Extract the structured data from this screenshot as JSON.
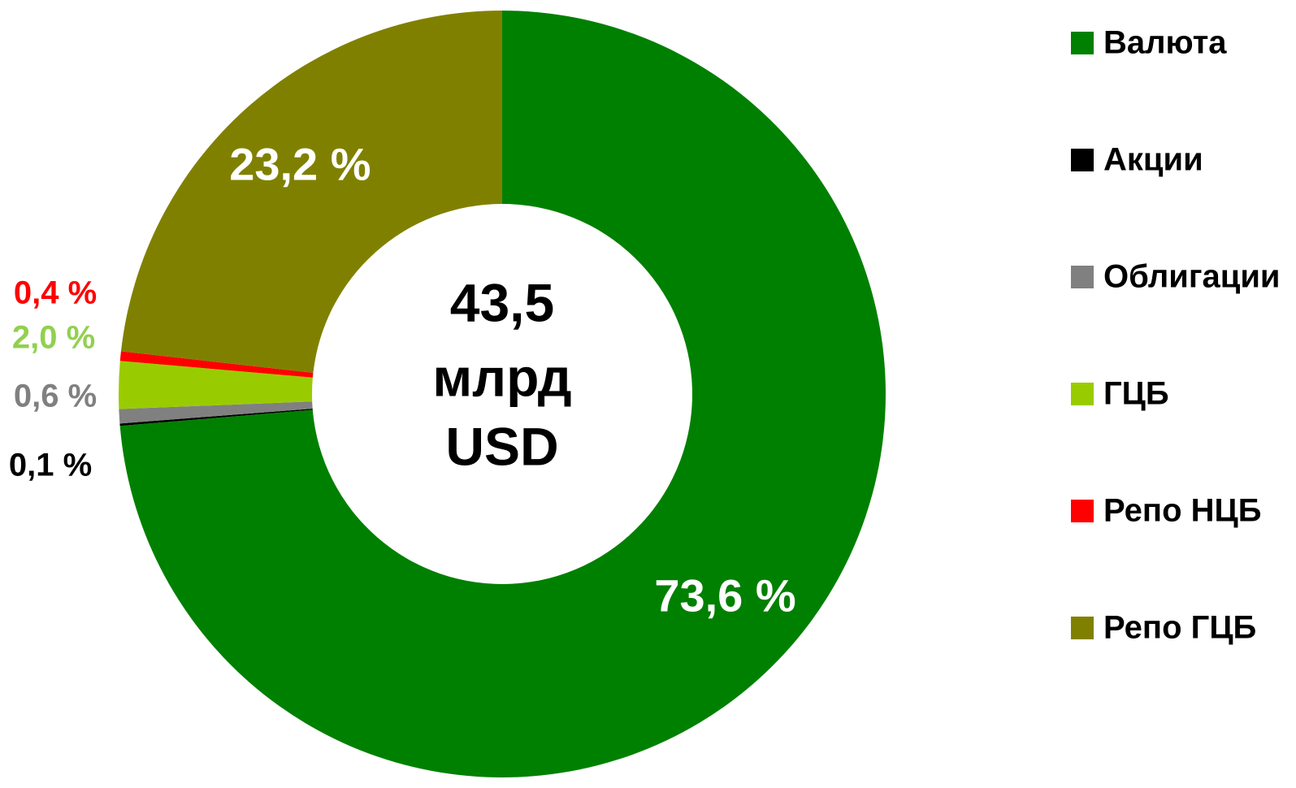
{
  "chart_data": {
    "type": "donut",
    "categories": [
      "Валюта",
      "Акции",
      "Облигации",
      "ГЦБ",
      "Репо НЦБ",
      "Репо ГЦБ"
    ],
    "values": [
      73.6,
      0.1,
      0.6,
      2.0,
      0.4,
      23.2
    ],
    "value_labels": [
      "73,6 %",
      "0,1 %",
      "0,6 %",
      "2,0 %",
      "0,4 %",
      "23,2 %"
    ],
    "colors": [
      "#008000",
      "#000000",
      "#808080",
      "#99cc00",
      "#ff0000",
      "#808000"
    ],
    "label_colors": [
      "#ffffff",
      "#000000",
      "#808080",
      "#92d050",
      "#ff0000",
      "#ffffff"
    ],
    "center_text": [
      "43,5",
      "млрд",
      "USD"
    ],
    "legend": "right"
  }
}
